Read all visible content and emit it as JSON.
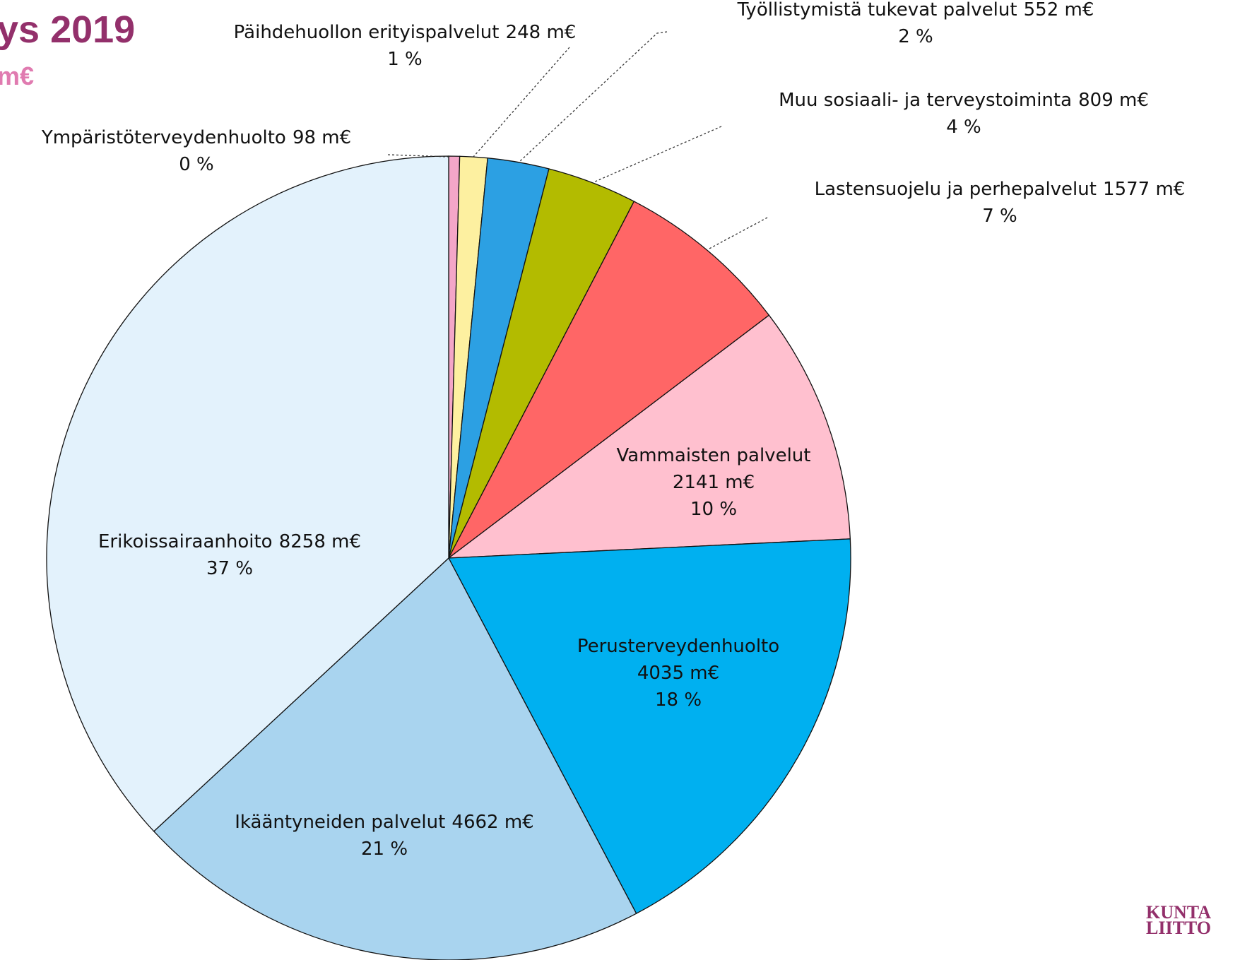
{
  "title": "ys 2019",
  "subtitle": "m€",
  "logo": [
    "KUNTA",
    "LIITTO"
  ],
  "chart_data": {
    "type": "pie",
    "categories": [
      "Ympäristöterveydenhuolto",
      "Päihdehuollon erityispalvelut",
      "Työllistymistä tukevat palvelut",
      "Muu sosiaali- ja terveystoiminta",
      "Lastensuojelu ja perhepalvelut",
      "Vammaisten palvelut",
      "Perusterveydenhuolto",
      "Ikääntyneiden palvelut",
      "Erikoissairaanhoito"
    ],
    "values": [
      98,
      248,
      552,
      809,
      1577,
      2141,
      4035,
      4662,
      8258
    ],
    "value_labels": [
      "98 m€",
      "248 m€",
      "552 m€",
      "809 m€",
      "1577 m€",
      "2141 m€",
      "4035 m€",
      "4662 m€",
      "8258 m€"
    ],
    "percent_labels": [
      "0 %",
      "1 %",
      "2 %",
      "4 %",
      "7 %",
      "10 %",
      "18 %",
      "21 %",
      "37 %"
    ],
    "colors": [
      "#f4a6c8",
      "#fdf0a0",
      "#2ca0e3",
      "#b3bb00",
      "#ff6666",
      "#ffc0cf",
      "#00b0f0",
      "#a9d4ef",
      "#e3f2fc"
    ]
  }
}
